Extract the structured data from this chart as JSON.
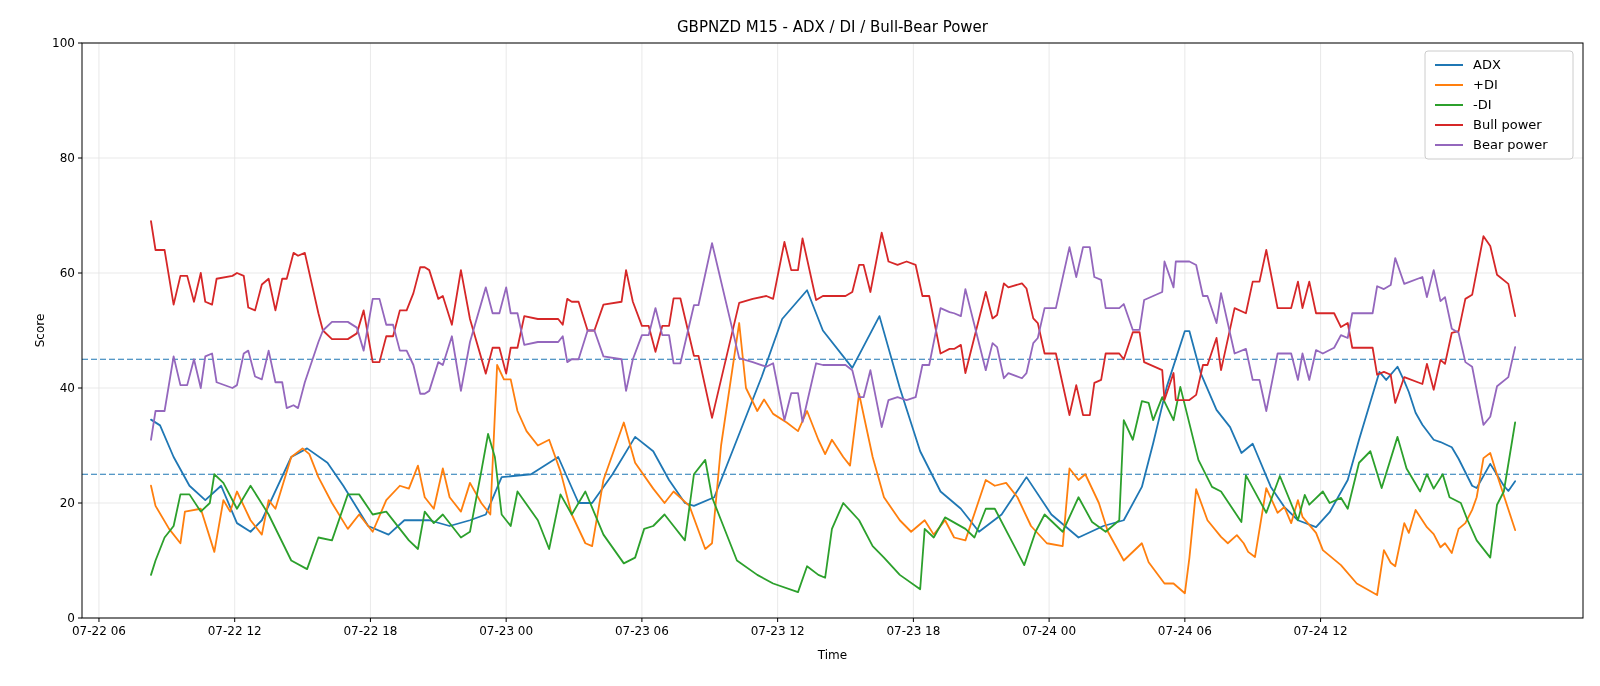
{
  "chart_data": {
    "type": "line",
    "title": "GBPNZD M15 - ADX / DI / Bull-Bear Power",
    "xlabel": "Time",
    "ylabel": "Score",
    "xlim": [
      "--07-22T05:15",
      "--07-24T23:36"
    ],
    "xticks": [
      {
        "value": "--07-22T06:00",
        "label": "07-22 06"
      },
      {
        "value": "--07-22T12:00",
        "label": "07-22 12"
      },
      {
        "value": "--07-22T18:00",
        "label": "07-22 18"
      },
      {
        "value": "--07-23T00:00",
        "label": "07-23 00"
      },
      {
        "value": "--07-23T06:00",
        "label": "07-23 06"
      },
      {
        "value": "--07-23T12:00",
        "label": "07-23 12"
      },
      {
        "value": "--07-23T18:00",
        "label": "07-23 18"
      },
      {
        "value": "--07-24T00:00",
        "label": "07-24 00"
      },
      {
        "value": "--07-24T06:00",
        "label": "07-24 06"
      },
      {
        "value": "--07-24T12:00",
        "label": "07-24 12"
      }
    ],
    "ylim": [
      0,
      100
    ],
    "yticks": [
      0,
      20,
      40,
      60,
      80,
      100
    ],
    "grid": true,
    "legend": "top right",
    "line_style": "solid",
    "ref_lines": [
      {
        "axis": "y",
        "value": 45,
        "color": "#1f77b4",
        "line_style": "dashed"
      },
      {
        "axis": "y",
        "value": 25,
        "color": "#1f77b4",
        "line_style": "dashed"
      }
    ],
    "x": [
      "--07-22T08:18",
      "--07-22T08:30",
      "--07-22T08:54",
      "--07-22T09:18",
      "--07-22T09:36",
      "--07-22T09:54",
      "--07-22T10:12",
      "--07-22T10:30",
      "--07-22T10:42",
      "--07-22T11:00",
      "--07-22T11:12",
      "--07-22T11:54",
      "--07-22T12:06",
      "--07-22T12:24",
      "--07-22T12:36",
      "--07-22T12:54",
      "--07-22T13:12",
      "--07-22T13:30",
      "--07-22T13:48",
      "--07-22T14:06",
      "--07-22T14:18",
      "--07-22T14:36",
      "--07-22T14:48",
      "--07-22T15:06",
      "--07-22T15:42",
      "--07-22T15:54",
      "--07-22T16:18",
      "--07-22T17:00",
      "--07-22T17:24",
      "--07-22T17:42",
      "--07-22T18:06",
      "--07-22T18:24",
      "--07-22T18:42",
      "--07-22T19:00",
      "--07-22T19:18",
      "--07-22T19:36",
      "--07-22T19:54",
      "--07-22T20:12",
      "--07-22T20:24",
      "--07-22T20:36",
      "--07-22T21:00",
      "--07-22T21:12",
      "--07-22T21:36",
      "--07-22T22:00",
      "--07-22T22:24",
      "--07-22T23:06",
      "--07-22T23:24",
      "--07-22T23:42",
      "--07-23T00:00",
      "--07-23T00:12",
      "--07-23T00:30",
      "--07-23T00:48",
      "--07-23T01:24",
      "--07-23T02:18",
      "--07-23T02:30",
      "--07-23T02:42",
      "--07-23T02:54",
      "--07-23T03:12",
      "--07-23T03:36",
      "--07-23T03:54",
      "--07-23T04:18",
      "--07-23T05:06",
      "--07-23T05:18",
      "--07-23T05:36",
      "--07-23T06:00",
      "--07-23T06:18",
      "--07-23T06:36",
      "--07-23T06:54",
      "--07-23T07:12",
      "--07-23T07:24",
      "--07-23T07:42",
      "--07-23T08:18",
      "--07-23T08:30",
      "--07-23T09:06",
      "--07-23T10:18",
      "--07-23T10:54",
      "--07-23T11:30",
      "--07-23T11:48",
      "--07-23T12:18",
      "--07-23T12:36",
      "--07-23T12:54",
      "--07-23T13:06",
      "--07-23T13:42",
      "--07-23T14:00",
      "--07-23T15:00",
      "--07-23T15:18",
      "--07-23T15:36",
      "--07-23T15:48",
      "--07-23T16:06",
      "--07-23T16:36",
      "--07-23T16:54",
      "--07-23T17:18",
      "--07-23T17:42",
      "--07-23T18:06",
      "--07-23T18:24",
      "--07-23T18:42",
      "--07-23T19:12",
      "--07-23T19:36",
      "--07-23T19:48",
      "--07-23T20:06",
      "--07-23T20:18",
      "--07-23T21:12",
      "--07-23T21:30",
      "--07-23T21:42",
      "--07-23T22:00",
      "--07-23T22:12",
      "--07-23T22:48",
      "--07-23T23:00",
      "--07-23T23:18",
      "--07-23T23:30",
      "--07-23T23:48",
      "--07-24T00:18",
      "--07-24T00:54",
      "--07-24T01:12",
      "--07-24T01:30",
      "--07-24T01:48",
      "--07-24T02:00",
      "--07-24T02:18",
      "--07-24T02:30",
      "--07-24T03:06",
      "--07-24T03:18",
      "--07-24T03:42",
      "--07-24T04:00",
      "--07-24T04:12",
      "--07-24T05:00",
      "--07-24T05:06",
      "--07-24T05:30",
      "--07-24T05:36",
      "--07-24T06:12",
      "--07-24T06:30",
      "--07-24T06:48",
      "--07-24T07:00",
      "--07-24T07:24",
      "--07-24T07:36",
      "--07-24T08:12",
      "--07-24T08:42",
      "--07-24T09:00",
      "--07-24T09:18",
      "--07-24T09:36",
      "--07-24T10:06",
      "--07-24T10:42",
      "--07-24T11:00",
      "--07-24T11:12",
      "--07-24T11:30",
      "--07-24T11:48",
      "--07-24T12:06",
      "--07-24T12:24",
      "--07-24T12:36",
      "--07-24T12:54",
      "--07-24T13:12",
      "--07-24T13:24",
      "--07-24T14:18",
      "--07-24T14:30",
      "--07-24T14:48",
      "--07-24T15:06",
      "--07-24T15:18",
      "--07-24T15:42",
      "--07-24T16:30",
      "--07-24T16:42",
      "--07-24T17:00",
      "--07-24T17:18",
      "--07-24T17:30",
      "--07-24T17:48",
      "--07-24T18:06",
      "--07-24T18:24",
      "--07-24T18:42",
      "--07-24T19:12",
      "--07-24T19:30",
      "--07-24T19:48",
      "--07-24T20:18",
      "--07-24T20:36"
    ],
    "series": [
      {
        "name": "ADX",
        "color": "#1f77b4",
        "x": [
          "--07-22T08:18",
          "--07-22T08:42",
          "--07-22T09:18",
          "--07-22T10:00",
          "--07-22T10:42",
          "--07-22T11:24",
          "--07-22T12:06",
          "--07-22T12:42",
          "--07-22T13:12",
          "--07-22T14:30",
          "--07-22T15:12",
          "--07-22T16:06",
          "--07-22T16:48",
          "--07-22T17:54",
          "--07-22T18:48",
          "--07-22T19:30",
          "--07-22T20:36",
          "--07-22T21:30",
          "--07-22T22:24",
          "--07-22T23:06",
          "--07-22T23:48",
          "--07-23T01:06",
          "--07-23T02:18",
          "--07-23T03:12",
          "--07-23T03:48",
          "--07-23T04:42",
          "--07-23T05:42",
          "--07-23T06:30",
          "--07-23T07:12",
          "--07-23T07:54",
          "--07-23T08:18",
          "--07-23T09:12",
          "--07-23T10:06",
          "--07-23T11:18",
          "--07-23T12:12",
          "--07-23T13:18",
          "--07-23T14:00",
          "--07-23T15:18",
          "--07-23T16:30",
          "--07-23T17:24",
          "--07-23T18:18",
          "--07-23T19:12",
          "--07-23T20:06",
          "--07-23T20:54",
          "--07-23T21:54",
          "--07-23T23:00",
          "--07-24T00:06",
          "--07-24T01:18",
          "--07-24T02:24",
          "--07-24T03:18",
          "--07-24T04:06",
          "--07-24T04:36",
          "--07-24T05:12",
          "--07-24T06:00",
          "--07-24T06:12",
          "--07-24T06:42",
          "--07-24T07:24",
          "--07-24T08:00",
          "--07-24T08:30",
          "--07-24T09:00",
          "--07-24T09:48",
          "--07-24T10:24",
          "--07-24T11:00",
          "--07-24T11:48",
          "--07-24T12:24",
          "--07-24T13:12",
          "--07-24T13:42",
          "--07-24T14:36",
          "--07-24T14:54",
          "--07-24T15:24",
          "--07-24T15:42",
          "--07-24T15:54",
          "--07-24T16:12",
          "--07-24T16:30",
          "--07-24T17:00",
          "--07-24T17:18",
          "--07-24T17:48",
          "--07-24T18:06",
          "--07-24T18:42",
          "--07-24T18:54",
          "--07-24T19:30",
          "--07-24T20:06",
          "--07-24T20:18",
          "--07-24T20:36"
        ],
        "values": [
          34.5,
          33.5,
          28,
          23,
          20.5,
          23,
          16.5,
          15,
          17,
          28,
          29.5,
          27,
          23,
          16,
          14.5,
          17,
          17,
          16,
          17,
          18,
          24.5,
          25,
          28,
          20,
          20,
          25,
          31.5,
          29,
          24,
          20,
          19.5,
          21,
          30,
          42,
          52,
          57,
          50,
          43.5,
          52.5,
          40,
          29,
          22,
          19,
          15,
          18,
          24.5,
          18,
          14,
          16,
          17,
          22.8,
          30.4,
          40.2,
          49.9,
          49.9,
          42.6,
          36.2,
          33.2,
          28.7,
          30.3,
          22.8,
          19.3,
          17,
          15.8,
          18.4,
          24,
          31,
          42.8,
          41.4,
          43.7,
          41.2,
          39.3,
          35.7,
          33.6,
          31,
          30.6,
          29.7,
          27.7,
          23,
          22.6,
          26.8,
          23,
          22.1,
          23.8
        ]
      },
      {
        "name": "+DI",
        "color": "#ff7f0e",
        "x": [
          "--07-22T08:18",
          "--07-22T08:30",
          "--07-22T09:06",
          "--07-22T09:36",
          "--07-22T09:48",
          "--07-22T10:30",
          "--07-22T11:06",
          "--07-22T11:30",
          "--07-22T11:48",
          "--07-22T12:06",
          "--07-22T12:42",
          "--07-22T13:12",
          "--07-22T13:30",
          "--07-22T13:48",
          "--07-22T14:30",
          "--07-22T15:00",
          "--07-22T15:18",
          "--07-22T15:42",
          "--07-22T16:18",
          "--07-22T17:00",
          "--07-22T17:30",
          "--07-22T18:06",
          "--07-22T18:42",
          "--07-22T19:18",
          "--07-22T19:42",
          "--07-22T20:06",
          "--07-22T20:24",
          "--07-22T20:48",
          "--07-22T21:12",
          "--07-22T21:30",
          "--07-22T22:00",
          "--07-22T22:24",
          "--07-22T22:54",
          "--07-22T23:18",
          "--07-22T23:36",
          "--07-22T23:54",
          "--07-23T00:12",
          "--07-23T00:30",
          "--07-23T00:54",
          "--07-23T01:24",
          "--07-23T01:54",
          "--07-23T02:24",
          "--07-23T02:54",
          "--07-23T03:30",
          "--07-23T03:48",
          "--07-23T04:18",
          "--07-23T05:12",
          "--07-23T05:42",
          "--07-23T06:30",
          "--07-23T07:00",
          "--07-23T07:24",
          "--07-23T08:06",
          "--07-23T08:48",
          "--07-23T09:06",
          "--07-23T09:30",
          "--07-23T10:18",
          "--07-23T10:36",
          "--07-23T11:06",
          "--07-23T11:24",
          "--07-23T11:48",
          "--07-23T12:24",
          "--07-23T12:54",
          "--07-23T13:18",
          "--07-23T13:48",
          "--07-23T14:06",
          "--07-23T14:24",
          "--07-23T14:54",
          "--07-23T15:12",
          "--07-23T15:36",
          "--07-23T16:12",
          "--07-23T16:42",
          "--07-23T17:24",
          "--07-23T17:54",
          "--07-23T18:30",
          "--07-23T18:54",
          "--07-23T19:24",
          "--07-23T19:48",
          "--07-23T20:18",
          "--07-23T21:12",
          "--07-23T21:36",
          "--07-23T22:06",
          "--07-23T22:36",
          "--07-23T23:12",
          "--07-23T23:54",
          "--07-24T00:36",
          "--07-24T00:54",
          "--07-24T01:18",
          "--07-24T01:36",
          "--07-24T02:12",
          "--07-24T02:36",
          "--07-24T03:18",
          "--07-24T04:06",
          "--07-24T04:24",
          "--07-24T05:06",
          "--07-24T05:30",
          "--07-24T06:00",
          "--07-24T06:12",
          "--07-24T06:30",
          "--07-24T07:00",
          "--07-24T07:36",
          "--07-24T07:54",
          "--07-24T08:18",
          "--07-24T08:36",
          "--07-24T08:48",
          "--07-24T09:06",
          "--07-24T09:36",
          "--07-24T10:06",
          "--07-24T10:24",
          "--07-24T10:42",
          "--07-24T11:00",
          "--07-24T11:12",
          "--07-24T11:48",
          "--07-24T12:06",
          "--07-24T12:54",
          "--07-24T13:36",
          "--07-24T14:30",
          "--07-24T14:48",
          "--07-24T15:06",
          "--07-24T15:18",
          "--07-24T15:42",
          "--07-24T15:54",
          "--07-24T16:12",
          "--07-24T16:42",
          "--07-24T17:00",
          "--07-24T17:18",
          "--07-24T17:30",
          "--07-24T17:48",
          "--07-24T18:06",
          "--07-24T18:24",
          "--07-24T18:42",
          "--07-24T18:54",
          "--07-24T19:12",
          "--07-24T19:30",
          "--07-24T19:48",
          "--07-24T20:36"
        ],
        "values": [
          23,
          19.5,
          15.5,
          13,
          18.5,
          19,
          11.5,
          20.5,
          18.5,
          22,
          17,
          14.5,
          20.5,
          19,
          28,
          29.5,
          28.5,
          24.5,
          20,
          15.5,
          18,
          15,
          20.5,
          23,
          22.5,
          26.5,
          21,
          19,
          26,
          21,
          18.5,
          23.5,
          20,
          18,
          44,
          41.5,
          41.5,
          36,
          32.5,
          30,
          31,
          25.5,
          18,
          13,
          12.5,
          24,
          34,
          27,
          22.5,
          20,
          22,
          19.5,
          12,
          13,
          30,
          51.3,
          40,
          36,
          38,
          35.5,
          34,
          32.5,
          36,
          31,
          28.5,
          31,
          28,
          26.5,
          39,
          28,
          21,
          17,
          15,
          17,
          14.5,
          17,
          14,
          13.5,
          24,
          23,
          23.5,
          21,
          16,
          13,
          12.5,
          26,
          24,
          25,
          20,
          15,
          10,
          13,
          9.7,
          6,
          6,
          4.3,
          10.4,
          22.4,
          17,
          14.1,
          13,
          14.4,
          13,
          11.5,
          10.6,
          22.6,
          18.3,
          19.3,
          16.5,
          20.5,
          17.6,
          14.8,
          11.8,
          9.2,
          6,
          4,
          11.8,
          9.6,
          9,
          16.5,
          14.8,
          18.8,
          15.8,
          14.6,
          12.3,
          13,
          11.3,
          15.5,
          16.5,
          18.8,
          21,
          27.8,
          28.7,
          24.9,
          15.3
        ]
      },
      {
        "name": "-DI",
        "color": "#2ca02c",
        "x": [
          "--07-22T08:18",
          "--07-22T08:30",
          "--07-22T08:54",
          "--07-22T09:18",
          "--07-22T09:36",
          "--07-22T10:00",
          "--07-22T10:30",
          "--07-22T10:54",
          "--07-22T11:06",
          "--07-22T11:30",
          "--07-22T12:06",
          "--07-22T12:42",
          "--07-22T13:30",
          "--07-22T14:30",
          "--07-22T15:12",
          "--07-22T15:42",
          "--07-22T16:18",
          "--07-22T17:00",
          "--07-22T17:30",
          "--07-22T18:06",
          "--07-22T18:42",
          "--07-22T19:42",
          "--07-22T20:06",
          "--07-22T20:24",
          "--07-22T20:48",
          "--07-22T21:12",
          "--07-22T22:00",
          "--07-22T22:24",
          "--07-22T22:54",
          "--07-22T23:12",
          "--07-22T23:30",
          "--07-22T23:48",
          "--07-23T00:12",
          "--07-23T00:30",
          "--07-23T01:24",
          "--07-23T01:54",
          "--07-23T02:24",
          "--07-23T02:54",
          "--07-23T03:30",
          "--07-23T04:18",
          "--07-23T05:12",
          "--07-23T05:42",
          "--07-23T06:06",
          "--07-23T06:30",
          "--07-23T07:00",
          "--07-23T07:24",
          "--07-23T07:54",
          "--07-23T08:18",
          "--07-23T08:48",
          "--07-23T09:06",
          "--07-23T09:30",
          "--07-23T10:12",
          "--07-23T11:06",
          "--07-23T11:48",
          "--07-23T12:54",
          "--07-23T13:18",
          "--07-23T13:48",
          "--07-23T14:06",
          "--07-23T14:24",
          "--07-23T14:54",
          "--07-23T15:36",
          "--07-23T16:12",
          "--07-23T16:42",
          "--07-23T17:24",
          "--07-23T18:18",
          "--07-23T18:30",
          "--07-23T18:54",
          "--07-23T19:24",
          "--07-23T20:18",
          "--07-23T20:42",
          "--07-23T21:12",
          "--07-23T21:36",
          "--07-23T22:54",
          "--07-23T23:24",
          "--07-23T23:48",
          "--07-24T00:36",
          "--07-24T01:18",
          "--07-24T01:54",
          "--07-24T02:30",
          "--07-24T03:06",
          "--07-24T03:18",
          "--07-24T03:42",
          "--07-24T04:06",
          "--07-24T04:24",
          "--07-24T04:36",
          "--07-24T05:00",
          "--07-24T05:30",
          "--07-24T05:48",
          "--07-24T06:36",
          "--07-24T07:12",
          "--07-24T07:36",
          "--07-24T08:30",
          "--07-24T08:42",
          "--07-24T09:36",
          "--07-24T10:12",
          "--07-24T11:00",
          "--07-24T11:18",
          "--07-24T11:30",
          "--07-24T12:06",
          "--07-24T12:24",
          "--07-24T12:54",
          "--07-24T13:12",
          "--07-24T13:42",
          "--07-24T14:12",
          "--07-24T14:42",
          "--07-24T15:24",
          "--07-24T15:48",
          "--07-24T16:24",
          "--07-24T16:42",
          "--07-24T17:00",
          "--07-24T17:24",
          "--07-24T17:42",
          "--07-24T18:12",
          "--07-24T18:30",
          "--07-24T18:54",
          "--07-24T19:30",
          "--07-24T19:48",
          "--07-24T20:06",
          "--07-24T20:36"
        ],
        "values": [
          7.5,
          10,
          14,
          16,
          21.5,
          21.5,
          18.5,
          20,
          25,
          23.5,
          19,
          23,
          18,
          10,
          8.5,
          14,
          13.5,
          21.5,
          21.5,
          18,
          18.5,
          13.5,
          12,
          18.5,
          16.5,
          18,
          14,
          15,
          25.5,
          32,
          28,
          18,
          16,
          22,
          17,
          12,
          21.5,
          18,
          22,
          14.5,
          9.5,
          10.5,
          15.5,
          16,
          18,
          16,
          13.5,
          25,
          27.5,
          21,
          17,
          10,
          7.5,
          6,
          4.5,
          9,
          7.5,
          7,
          15.5,
          20,
          17,
          12.5,
          10.5,
          7.5,
          5,
          15.5,
          14,
          17.5,
          15.5,
          14,
          19,
          19,
          9.2,
          15,
          18,
          15,
          21,
          16.7,
          15,
          17,
          34.4,
          31,
          37.7,
          37.4,
          34.4,
          38.4,
          34.4,
          40.2,
          27.5,
          22.8,
          22,
          16.7,
          24.8,
          18.3,
          24.7,
          17,
          21.4,
          19.7,
          22,
          20,
          20.9,
          19,
          27,
          29,
          22.6,
          31.5,
          26,
          22,
          25,
          22.5,
          25,
          21,
          20,
          17,
          13.5,
          10.5,
          19.7,
          22,
          34
        ]
      },
      {
        "name": "Bull power",
        "color": "#d62728",
        "values": [
          69,
          64,
          64,
          54.5,
          59.5,
          59.5,
          55,
          60,
          55,
          54.5,
          59,
          59.5,
          60,
          59.5,
          54,
          53.5,
          58,
          59,
          53.5,
          59,
          59,
          63.5,
          63,
          63.5,
          53,
          50,
          48.5,
          48.5,
          49.5,
          53.5,
          44.5,
          44.5,
          49,
          49,
          53.5,
          53.5,
          56.5,
          61,
          61,
          60.5,
          55.5,
          56,
          51,
          60.5,
          52,
          42.5,
          47,
          47,
          42.5,
          47,
          47,
          52.5,
          52,
          52,
          51,
          55.5,
          55,
          55,
          50,
          50,
          54.5,
          55,
          60.5,
          55,
          50.8,
          50.8,
          46.3,
          50.8,
          50.8,
          55.6,
          55.6,
          45.6,
          45.6,
          34.8,
          54.8,
          55.5,
          56,
          55.5,
          65.4,
          60.5,
          60.5,
          66,
          55.3,
          56,
          56,
          56.7,
          61.4,
          61.4,
          56.7,
          67,
          62,
          61.4,
          62,
          61.4,
          56,
          56,
          46,
          46.8,
          46.8,
          47.5,
          42.6,
          56.7,
          52.1,
          52.7,
          58.2,
          57.5,
          58.2,
          57.3,
          52.1,
          51.3,
          46,
          46,
          35.3,
          40.5,
          35.3,
          35.3,
          40.9,
          41.4,
          46,
          46,
          45,
          49.7,
          49.7,
          44.5,
          43.1,
          37.9,
          42.6,
          37.9,
          37.9,
          38.8,
          44,
          44,
          48.7,
          43.1,
          53.9,
          53,
          58.5,
          58.5,
          64,
          53.9,
          53.9,
          58.5,
          53.9,
          58.5,
          53,
          53,
          53,
          53,
          50.6,
          51.3,
          47,
          47,
          42.3,
          42.8,
          42.3,
          37.4,
          41.9,
          40.7,
          44.2,
          39.7,
          44.9,
          44.2,
          49.6,
          49.9,
          55.5,
          56.2,
          66.4,
          64.7,
          59.7,
          58.1,
          52.5
        ]
      },
      {
        "name": "Bear power",
        "color": "#9467bd",
        "values": [
          31,
          36,
          36,
          45.5,
          40.5,
          40.5,
          45,
          40,
          45.5,
          46,
          41,
          40,
          40.5,
          46,
          46.5,
          42,
          41.5,
          46.5,
          41,
          41,
          36.5,
          37,
          36.5,
          41,
          48,
          50,
          51.5,
          51.5,
          50.5,
          46.5,
          55.5,
          55.5,
          51,
          51,
          46.5,
          46.5,
          44,
          39,
          39,
          39.5,
          44.5,
          44,
          49,
          39.5,
          48,
          57.5,
          53,
          53,
          57.5,
          53,
          53,
          47.5,
          48,
          48,
          49,
          44.5,
          45,
          45,
          50,
          50,
          45.5,
          45,
          39.5,
          45,
          49.2,
          49.2,
          53.9,
          49.2,
          49.2,
          44.3,
          44.3,
          54.4,
          54.4,
          65.2,
          45.2,
          44.5,
          43.7,
          44.3,
          34.4,
          39.1,
          39.1,
          34.1,
          44.3,
          44,
          44,
          43.1,
          38.4,
          38.4,
          43.1,
          33.2,
          37.9,
          38.4,
          37.9,
          38.4,
          44,
          44,
          53.9,
          53.2,
          53,
          52.5,
          57.2,
          43.1,
          47.8,
          47.1,
          41.7,
          42.6,
          41.7,
          42.6,
          47.8,
          48.7,
          53.9,
          53.9,
          64.5,
          59.3,
          64.5,
          64.5,
          59.3,
          58.8,
          53.9,
          53.9,
          54.6,
          50.1,
          50.1,
          55.3,
          56.7,
          62,
          57.5,
          62,
          62,
          61.4,
          56,
          56,
          51.3,
          56.5,
          46,
          46.8,
          41.4,
          41.4,
          36,
          46,
          46,
          41.4,
          46,
          41.4,
          46.6,
          46,
          46.6,
          47,
          49.2,
          48.7,
          53,
          53,
          57.7,
          57.2,
          57.9,
          62.6,
          58.1,
          59.3,
          55.8,
          60.5,
          55.1,
          55.8,
          50.3,
          49.6,
          44.5,
          43.7,
          33.6,
          35,
          40.3,
          41.9,
          47.1
        ]
      }
    ]
  }
}
